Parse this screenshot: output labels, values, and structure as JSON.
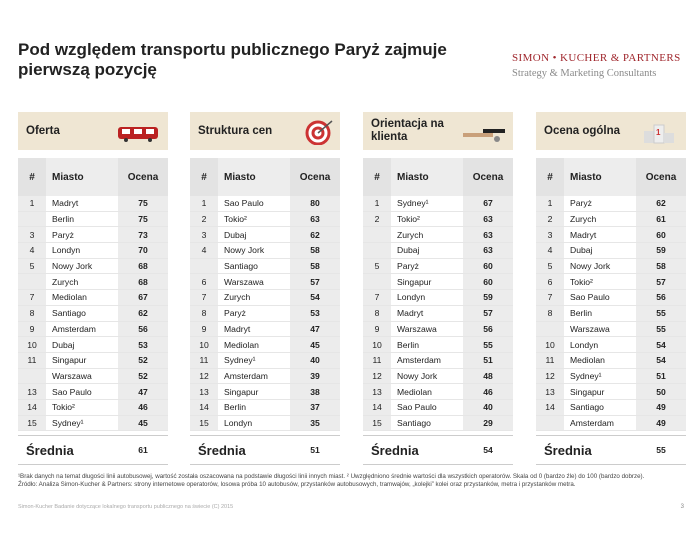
{
  "header": {
    "title": "Pod względem transportu publicznego Paryż zajmuje pierwszą pozycję",
    "logo_name": "SIMON • KUCHER & PARTNERS",
    "logo_tagline": "Strategy & Marketing Consultants"
  },
  "tables": [
    {
      "title": "Oferta",
      "columns": [
        "#",
        "Miasto",
        "Ocena"
      ],
      "rows": [
        [
          1,
          "Madryt",
          75
        ],
        [
          null,
          "Berlin",
          75
        ],
        [
          3,
          "Paryż",
          73
        ],
        [
          4,
          "Londyn",
          70
        ],
        [
          5,
          "Nowy Jork",
          68
        ],
        [
          null,
          "Zurych",
          68
        ],
        [
          7,
          "Mediolan",
          67
        ],
        [
          8,
          "Santiago",
          62
        ],
        [
          9,
          "Amsterdam",
          56
        ],
        [
          10,
          "Dubaj",
          53
        ],
        [
          11,
          "Singapur",
          52
        ],
        [
          null,
          "Warszawa",
          52
        ],
        [
          13,
          "Sao Paulo",
          47
        ],
        [
          14,
          "Tokio²",
          46
        ],
        [
          15,
          "Sydney¹",
          45
        ]
      ],
      "average_label": "Średnia",
      "average": 61
    },
    {
      "title": "Struktura cen",
      "columns": [
        "#",
        "Miasto",
        "Ocena"
      ],
      "rows": [
        [
          1,
          "Sao Paulo",
          80
        ],
        [
          2,
          "Tokio²",
          63
        ],
        [
          3,
          "Dubaj",
          62
        ],
        [
          4,
          "Nowy Jork",
          58
        ],
        [
          null,
          "Santiago",
          58
        ],
        [
          6,
          "Warszawa",
          57
        ],
        [
          7,
          "Zurych",
          54
        ],
        [
          8,
          "Paryż",
          53
        ],
        [
          9,
          "Madryt",
          47
        ],
        [
          10,
          "Mediolan",
          45
        ],
        [
          11,
          "Sydney¹",
          40
        ],
        [
          12,
          "Amsterdam",
          39
        ],
        [
          13,
          "Singapur",
          38
        ],
        [
          14,
          "Berlin",
          37
        ],
        [
          15,
          "Londyn",
          35
        ]
      ],
      "average_label": "Średnia",
      "average": 51
    },
    {
      "title": "Orientacja na klienta",
      "columns": [
        "#",
        "Miasto",
        "Ocena"
      ],
      "rows": [
        [
          1,
          "Sydney¹",
          67
        ],
        [
          2,
          "Tokio²",
          63
        ],
        [
          null,
          "Zurych",
          63
        ],
        [
          null,
          "Dubaj",
          63
        ],
        [
          5,
          "Paryż",
          60
        ],
        [
          null,
          "Singapur",
          60
        ],
        [
          7,
          "Londyn",
          59
        ],
        [
          8,
          "Madryt",
          57
        ],
        [
          9,
          "Warszawa",
          56
        ],
        [
          10,
          "Berlin",
          55
        ],
        [
          11,
          "Amsterdam",
          51
        ],
        [
          12,
          "Nowy Jork",
          48
        ],
        [
          13,
          "Mediolan",
          46
        ],
        [
          14,
          "Sao Paulo",
          40
        ],
        [
          15,
          "Santiago",
          29
        ]
      ],
      "average_label": "Średnia",
      "average": 54
    },
    {
      "title": "Ocena ogólna",
      "columns": [
        "#",
        "Miasto",
        "Ocena"
      ],
      "rows": [
        [
          1,
          "Paryż",
          62
        ],
        [
          2,
          "Zurych",
          61
        ],
        [
          3,
          "Madryt",
          60
        ],
        [
          4,
          "Dubaj",
          59
        ],
        [
          5,
          "Nowy Jork",
          58
        ],
        [
          6,
          "Tokio²",
          57
        ],
        [
          7,
          "Sao Paulo",
          56
        ],
        [
          8,
          "Berlin",
          55
        ],
        [
          null,
          "Warszawa",
          55
        ],
        [
          10,
          "Londyn",
          54
        ],
        [
          11,
          "Mediolan",
          54
        ],
        [
          12,
          "Sydney¹",
          51
        ],
        [
          13,
          "Singapur",
          50
        ],
        [
          14,
          "Santiago",
          49
        ],
        [
          null,
          "Amsterdam",
          49
        ]
      ],
      "average_label": "Średnia",
      "average": 55
    }
  ],
  "footnotes": "¹Brak danych na temat długości linii autobusowej, wartość została oszacowana na podstawie długości linii innych miast. ² Uwzględniono średnie wartości dla wszystkich operatorów. Skala od 0 (bardzo źle) do 100 (bardzo dobrze).",
  "source": "Źródło: Analiza Simon-Kucher & Partners: strony internetowe operatorów, losowa próba 10 autobusów, przystanków autobusowych, tramwajów, „kolejki” kolei oraz przystanków, metra i przystanków metra.",
  "footer": "Simon-Kucher Badanie dotyczące lokalnego transportu publicznego na świecie (C) 2015",
  "page_number": 3
}
